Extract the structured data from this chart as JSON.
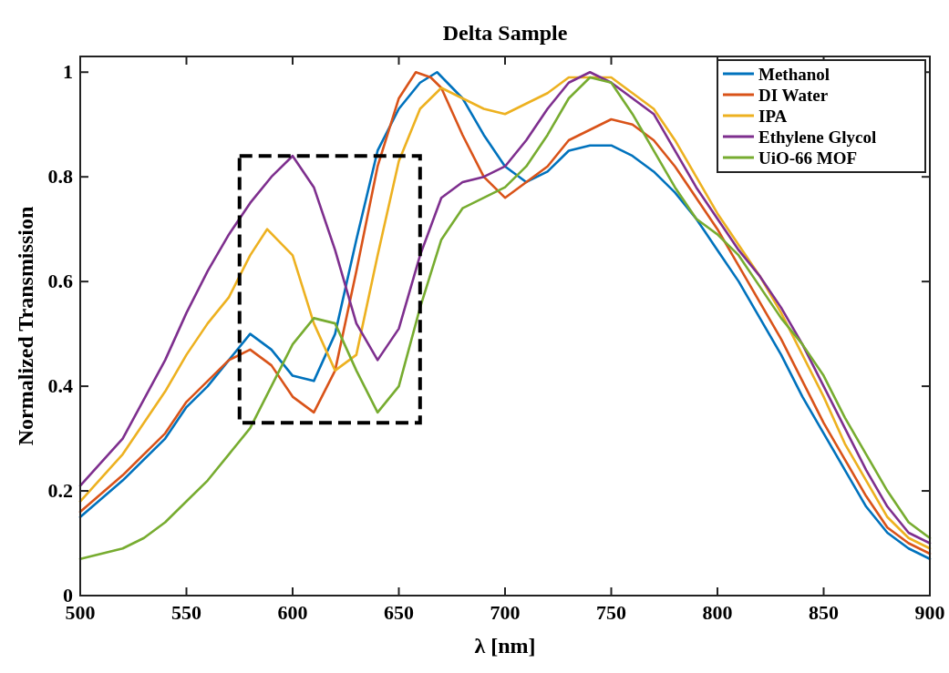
{
  "chart_data": {
    "type": "line",
    "title": "Delta Sample",
    "xlabel": "λ [nm]",
    "ylabel": "Normalized Transmission",
    "xlim": [
      500,
      900
    ],
    "ylim": [
      0,
      1.03
    ],
    "xticks": [
      500,
      550,
      600,
      650,
      700,
      750,
      800,
      850,
      900
    ],
    "yticks": [
      0,
      0.2,
      0.4,
      0.6,
      0.8,
      1
    ],
    "legend": "top right",
    "line_style": "solid",
    "marker": "none",
    "series": [
      {
        "name": "Methanol",
        "color": "#0072bd",
        "x": [
          500,
          520,
          540,
          550,
          560,
          570,
          580,
          590,
          600,
          610,
          620,
          630,
          640,
          650,
          660,
          668,
          680,
          690,
          700,
          710,
          720,
          730,
          740,
          750,
          760,
          770,
          780,
          790,
          800,
          810,
          820,
          830,
          840,
          850,
          860,
          870,
          880,
          890,
          900
        ],
        "values": [
          0.15,
          0.22,
          0.3,
          0.36,
          0.4,
          0.45,
          0.5,
          0.47,
          0.42,
          0.41,
          0.5,
          0.68,
          0.85,
          0.93,
          0.98,
          1.0,
          0.95,
          0.88,
          0.82,
          0.79,
          0.81,
          0.85,
          0.86,
          0.86,
          0.84,
          0.81,
          0.77,
          0.72,
          0.66,
          0.6,
          0.53,
          0.46,
          0.38,
          0.31,
          0.24,
          0.17,
          0.12,
          0.09,
          0.07
        ]
      },
      {
        "name": "DI Water",
        "color": "#d95319",
        "x": [
          500,
          520,
          540,
          550,
          560,
          570,
          580,
          590,
          600,
          610,
          620,
          630,
          640,
          650,
          658,
          665,
          670,
          680,
          690,
          700,
          710,
          720,
          730,
          740,
          750,
          760,
          770,
          780,
          790,
          800,
          810,
          820,
          830,
          840,
          850,
          860,
          870,
          880,
          890,
          900
        ],
        "values": [
          0.16,
          0.23,
          0.31,
          0.37,
          0.41,
          0.45,
          0.47,
          0.44,
          0.38,
          0.35,
          0.43,
          0.62,
          0.82,
          0.95,
          1.0,
          0.99,
          0.97,
          0.88,
          0.8,
          0.76,
          0.79,
          0.82,
          0.87,
          0.89,
          0.91,
          0.9,
          0.87,
          0.82,
          0.76,
          0.7,
          0.63,
          0.56,
          0.49,
          0.41,
          0.33,
          0.26,
          0.19,
          0.13,
          0.1,
          0.08
        ]
      },
      {
        "name": "IPA",
        "color": "#edb120",
        "x": [
          500,
          520,
          540,
          550,
          560,
          570,
          580,
          588,
          600,
          610,
          620,
          630,
          640,
          650,
          660,
          670,
          680,
          690,
          700,
          710,
          720,
          730,
          740,
          750,
          760,
          770,
          780,
          790,
          800,
          810,
          820,
          830,
          840,
          850,
          860,
          870,
          880,
          890,
          900
        ],
        "values": [
          0.18,
          0.27,
          0.39,
          0.46,
          0.52,
          0.57,
          0.65,
          0.7,
          0.65,
          0.52,
          0.43,
          0.46,
          0.65,
          0.83,
          0.93,
          0.97,
          0.95,
          0.93,
          0.92,
          0.94,
          0.96,
          0.99,
          0.99,
          0.99,
          0.96,
          0.93,
          0.87,
          0.8,
          0.73,
          0.67,
          0.61,
          0.54,
          0.46,
          0.38,
          0.29,
          0.22,
          0.15,
          0.11,
          0.09
        ]
      },
      {
        "name": "Ethylene Glycol",
        "color": "#7e2f8e",
        "x": [
          500,
          520,
          540,
          550,
          560,
          570,
          580,
          590,
          600,
          610,
          620,
          630,
          640,
          650,
          660,
          670,
          680,
          690,
          700,
          710,
          720,
          730,
          740,
          750,
          760,
          770,
          780,
          790,
          800,
          810,
          820,
          830,
          840,
          850,
          860,
          870,
          880,
          890,
          900
        ],
        "values": [
          0.21,
          0.3,
          0.45,
          0.54,
          0.62,
          0.69,
          0.75,
          0.8,
          0.84,
          0.78,
          0.66,
          0.52,
          0.45,
          0.51,
          0.65,
          0.76,
          0.79,
          0.8,
          0.82,
          0.87,
          0.93,
          0.98,
          1.0,
          0.98,
          0.95,
          0.92,
          0.85,
          0.78,
          0.72,
          0.66,
          0.61,
          0.55,
          0.48,
          0.4,
          0.32,
          0.24,
          0.17,
          0.12,
          0.1
        ]
      },
      {
        "name": "UiO-66 MOF",
        "color": "#77ac30",
        "x": [
          500,
          520,
          530,
          540,
          550,
          560,
          570,
          580,
          590,
          600,
          610,
          620,
          630,
          640,
          650,
          660,
          670,
          680,
          690,
          700,
          710,
          720,
          730,
          740,
          750,
          760,
          770,
          780,
          790,
          800,
          810,
          820,
          830,
          840,
          850,
          860,
          870,
          880,
          890,
          900
        ],
        "values": [
          0.07,
          0.09,
          0.11,
          0.14,
          0.18,
          0.22,
          0.27,
          0.32,
          0.4,
          0.48,
          0.53,
          0.52,
          0.43,
          0.35,
          0.4,
          0.55,
          0.68,
          0.74,
          0.76,
          0.78,
          0.82,
          0.88,
          0.95,
          0.99,
          0.98,
          0.92,
          0.85,
          0.78,
          0.72,
          0.69,
          0.65,
          0.59,
          0.53,
          0.48,
          0.42,
          0.34,
          0.27,
          0.2,
          0.14,
          0.11
        ]
      }
    ]
  }
}
